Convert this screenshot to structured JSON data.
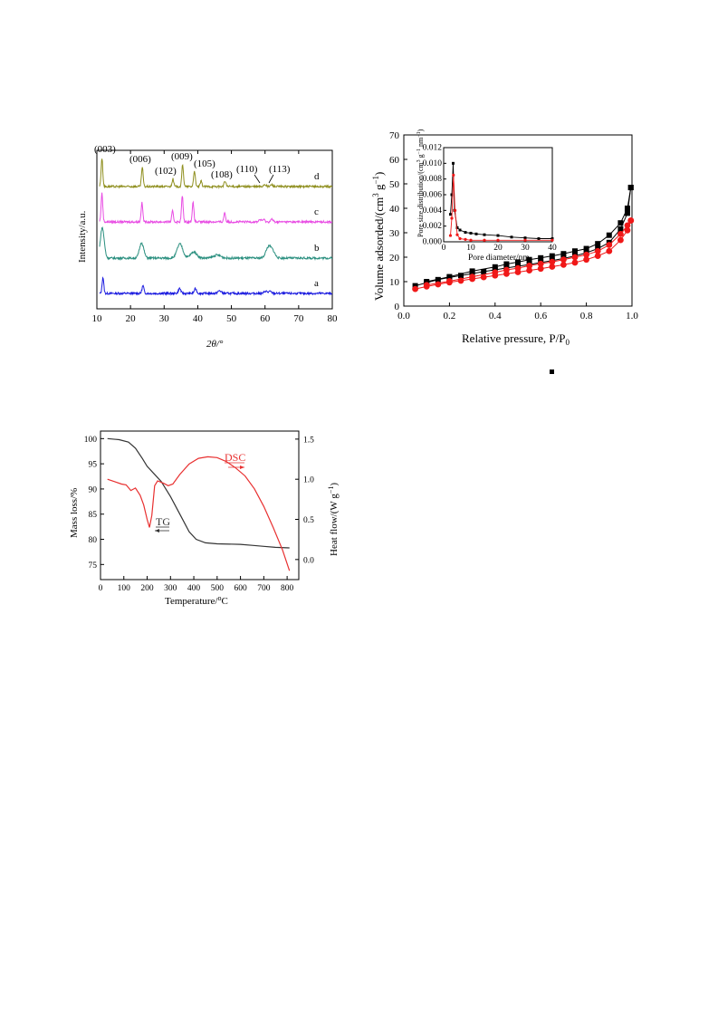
{
  "chart_data": [
    {
      "type": "line",
      "xlabel": "2θ/°",
      "ylabel": "Intensity/a.u.",
      "xlim": [
        10,
        80
      ],
      "xticks": [
        10,
        20,
        30,
        40,
        50,
        60,
        70,
        80
      ],
      "grid": false,
      "series": [
        {
          "name": "a",
          "color": "#1a1adf",
          "baseline": 0,
          "peaks": [
            [
              11.8,
              4.2,
              0.35
            ],
            [
              23.7,
              2.0,
              0.4
            ],
            [
              34.6,
              1.3,
              0.5
            ],
            [
              39.3,
              1.2,
              0.5
            ],
            [
              46.5,
              0.7,
              0.7
            ],
            [
              60.2,
              0.6,
              0.6
            ],
            [
              61.5,
              0.5,
              0.6
            ]
          ]
        },
        {
          "name": "b",
          "color": "#2a8f7f",
          "baseline": 0,
          "peaks": [
            [
              11.6,
              8.0,
              0.8
            ],
            [
              23.3,
              4.0,
              0.9
            ],
            [
              34.7,
              3.7,
              1.2
            ],
            [
              38.8,
              1.6,
              1.3
            ],
            [
              45.8,
              0.8,
              1.5
            ],
            [
              61.0,
              2.8,
              1.1
            ],
            [
              62.3,
              1.6,
              1.0
            ]
          ]
        },
        {
          "name": "c",
          "color": "#e84ce3",
          "baseline": 0,
          "peaks": [
            [
              11.5,
              7.5,
              0.35
            ],
            [
              23.4,
              5.0,
              0.35
            ],
            [
              32.5,
              2.8,
              0.35
            ],
            [
              35.4,
              6.8,
              0.35
            ],
            [
              38.6,
              5.0,
              0.35
            ],
            [
              48.0,
              2.5,
              0.35
            ],
            [
              58.5,
              0.6,
              0.5
            ],
            [
              59.6,
              0.6,
              0.5
            ],
            [
              62.0,
              0.7,
              0.5
            ]
          ]
        },
        {
          "name": "d",
          "color": "#8f8f1f",
          "baseline": 0,
          "peaks": [
            [
              11.5,
              7.5,
              0.35
            ],
            [
              23.5,
              5.0,
              0.35
            ],
            [
              32.6,
              2.0,
              0.35
            ],
            [
              35.5,
              5.8,
              0.35
            ],
            [
              39.0,
              4.2,
              0.35
            ],
            [
              41.0,
              1.4,
              0.35
            ],
            [
              48.1,
              1.4,
              0.4
            ],
            [
              59.9,
              0.6,
              0.5
            ],
            [
              62.0,
              0.5,
              0.5
            ]
          ]
        }
      ],
      "annotations": [
        "(003)",
        "(006)",
        "(102)",
        "(009)",
        "(105)",
        "(108)",
        "(110)",
        "(113)"
      ]
    },
    {
      "type": "scatter",
      "xlabel": "Relative pressure, P/P",
      "xlabel_sub": "0",
      "ylabel": "Volume adsorded/(cm",
      "ylabel_sup": "3",
      "ylabel_rest": " g",
      "ylabel_sup2": "−1",
      "ylabel_end": ")",
      "xlim": [
        0.0,
        1.0
      ],
      "ylim": [
        0,
        70
      ],
      "xticks": [
        0.0,
        0.2,
        0.4,
        0.6,
        0.8,
        1.0
      ],
      "yticks": [
        0,
        10,
        20,
        30,
        40,
        50,
        60,
        70
      ],
      "series": [
        {
          "marker": "square",
          "color": "#000000",
          "adsorption": [
            [
              0.05,
              8.3
            ],
            [
              0.1,
              9.6
            ],
            [
              0.15,
              10.8
            ],
            [
              0.2,
              11.7
            ],
            [
              0.25,
              12.5
            ],
            [
              0.3,
              13.3
            ],
            [
              0.35,
              14.1
            ],
            [
              0.4,
              14.8
            ],
            [
              0.45,
              15.6
            ],
            [
              0.5,
              16.3
            ],
            [
              0.55,
              17.0
            ],
            [
              0.6,
              17.8
            ],
            [
              0.65,
              18.6
            ],
            [
              0.7,
              19.5
            ],
            [
              0.75,
              20.5
            ],
            [
              0.8,
              21.8
            ],
            [
              0.85,
              23.5
            ],
            [
              0.9,
              26.0
            ],
            [
              0.95,
              31.5
            ],
            [
              0.98,
              38.0
            ],
            [
              0.995,
              48.5
            ]
          ],
          "desorption": [
            [
              0.995,
              48.5
            ],
            [
              0.98,
              40.0
            ],
            [
              0.95,
              34.0
            ],
            [
              0.9,
              29.0
            ],
            [
              0.85,
              25.5
            ],
            [
              0.8,
              23.5
            ],
            [
              0.75,
              22.5
            ],
            [
              0.7,
              21.4
            ],
            [
              0.65,
              20.5
            ],
            [
              0.6,
              19.7
            ],
            [
              0.55,
              19.0
            ],
            [
              0.5,
              18.0
            ],
            [
              0.45,
              17.2
            ],
            [
              0.4,
              16.0
            ],
            [
              0.3,
              14.3
            ],
            [
              0.2,
              12.0
            ],
            [
              0.1,
              10.0
            ]
          ]
        },
        {
          "marker": "circle",
          "color": "#f01818",
          "adsorption": [
            [
              0.05,
              7.0
            ],
            [
              0.1,
              8.0
            ],
            [
              0.15,
              8.9
            ],
            [
              0.2,
              9.7
            ],
            [
              0.25,
              10.4
            ],
            [
              0.3,
              11.1
            ],
            [
              0.35,
              11.8
            ],
            [
              0.4,
              12.5
            ],
            [
              0.45,
              13.2
            ],
            [
              0.5,
              13.9
            ],
            [
              0.55,
              14.6
            ],
            [
              0.6,
              15.3
            ],
            [
              0.65,
              16.1
            ],
            [
              0.7,
              16.9
            ],
            [
              0.75,
              17.8
            ],
            [
              0.8,
              19.0
            ],
            [
              0.85,
              20.5
            ],
            [
              0.9,
              22.5
            ],
            [
              0.95,
              27.0
            ],
            [
              0.98,
              31.0
            ],
            [
              0.995,
              35.0
            ]
          ],
          "desorption": [
            [
              0.995,
              35.0
            ],
            [
              0.98,
              33.0
            ],
            [
              0.95,
              29.5
            ],
            [
              0.9,
              25.0
            ],
            [
              0.85,
              22.5
            ],
            [
              0.8,
              21.0
            ],
            [
              0.75,
              20.0
            ],
            [
              0.7,
              19.0
            ],
            [
              0.65,
              18.1
            ],
            [
              0.6,
              17.3
            ],
            [
              0.55,
              16.5
            ],
            [
              0.5,
              15.5
            ],
            [
              0.45,
              14.8
            ],
            [
              0.4,
              13.8
            ],
            [
              0.3,
              12.0
            ],
            [
              0.2,
              10.2
            ],
            [
              0.1,
              8.6
            ]
          ]
        }
      ],
      "inset": {
        "xlabel": "Pore diameter/nm",
        "ylabel": "Pore size distribution/(cm",
        "ylabel_sup": "3",
        "ylabel_rest": " g",
        "ylabel_sup2": "−1",
        "ylabel_rest2": " nm",
        "ylabel_sup3": "−1",
        "ylabel_end": ")",
        "xlim": [
          0,
          40
        ],
        "ylim": [
          0,
          0.012
        ],
        "xticks": [
          0,
          10,
          20,
          30,
          40
        ],
        "yticks": [
          0.0,
          0.002,
          0.004,
          0.006,
          0.008,
          0.01,
          0.012
        ],
        "series": [
          {
            "color": "#000000",
            "marker": "square",
            "points": [
              [
                2.5,
                0.0035
              ],
              [
                3.0,
                0.006
              ],
              [
                3.5,
                0.01
              ],
              [
                4.0,
                0.004
              ],
              [
                5.0,
                0.0018
              ],
              [
                6.0,
                0.0015
              ],
              [
                8.0,
                0.0012
              ],
              [
                10.0,
                0.0011
              ],
              [
                12.0,
                0.001
              ],
              [
                15.0,
                0.0009
              ],
              [
                20.0,
                0.0008
              ],
              [
                25.0,
                0.0006
              ],
              [
                30.0,
                0.0005
              ],
              [
                35.0,
                0.0004
              ],
              [
                40.0,
                0.0004
              ]
            ]
          },
          {
            "color": "#f01818",
            "marker": "circle",
            "points": [
              [
                2.5,
                0.0008
              ],
              [
                3.0,
                0.003
              ],
              [
                3.6,
                0.0085
              ],
              [
                4.2,
                0.004
              ],
              [
                5.0,
                0.0009
              ],
              [
                6.0,
                0.0004
              ],
              [
                8.0,
                0.0003
              ],
              [
                10.0,
                0.0002
              ],
              [
                15.0,
                0.0002
              ],
              [
                20.0,
                0.0002
              ],
              [
                30.0,
                0.0002
              ],
              [
                40.0,
                0.0002
              ]
            ]
          }
        ]
      }
    },
    {
      "type": "line",
      "xlabel": "Temperature/",
      "xlabel_sup": "o",
      "xlabel_end": "C",
      "ylabel": "Mass loss/%",
      "y2label": "Heat flow/(W g",
      "y2label_sup": "−1",
      "y2label_end": ")",
      "xlim": [
        0,
        850
      ],
      "ylim": [
        72,
        101.5
      ],
      "y2lim": [
        -0.25,
        1.6
      ],
      "xticks": [
        0,
        100,
        200,
        300,
        400,
        500,
        600,
        700,
        800
      ],
      "yticks": [
        75,
        80,
        85,
        90,
        95,
        100
      ],
      "y2ticks": [
        0.0,
        0.5,
        1.0,
        1.5
      ],
      "series": [
        {
          "name": "TG",
          "axis": "left",
          "color": "#333333",
          "points": [
            [
              30,
              100
            ],
            [
              80,
              99.8
            ],
            [
              120,
              99.3
            ],
            [
              150,
              98.1
            ],
            [
              180,
              96
            ],
            [
              200,
              94.5
            ],
            [
              230,
              93
            ],
            [
              260,
              91.5
            ],
            [
              300,
              88.5
            ],
            [
              340,
              85
            ],
            [
              380,
              81.5
            ],
            [
              410,
              80
            ],
            [
              450,
              79.3
            ],
            [
              500,
              79.1
            ],
            [
              600,
              79
            ],
            [
              650,
              78.8
            ],
            [
              700,
              78.6
            ],
            [
              750,
              78.4
            ],
            [
              810,
              78.3
            ]
          ]
        },
        {
          "name": "DSC",
          "axis": "right",
          "color": "#e83030",
          "points": [
            [
              30,
              1.0
            ],
            [
              60,
              0.97
            ],
            [
              90,
              0.94
            ],
            [
              110,
              0.93
            ],
            [
              130,
              0.86
            ],
            [
              150,
              0.89
            ],
            [
              170,
              0.8
            ],
            [
              185,
              0.68
            ],
            [
              200,
              0.5
            ],
            [
              210,
              0.4
            ],
            [
              220,
              0.55
            ],
            [
              232,
              0.92
            ],
            [
              245,
              0.98
            ],
            [
              270,
              0.95
            ],
            [
              290,
              0.92
            ],
            [
              310,
              0.94
            ],
            [
              340,
              1.06
            ],
            [
              380,
              1.19
            ],
            [
              420,
              1.26
            ],
            [
              460,
              1.28
            ],
            [
              500,
              1.27
            ],
            [
              540,
              1.22
            ],
            [
              580,
              1.14
            ],
            [
              620,
              1.04
            ],
            [
              660,
              0.88
            ],
            [
              700,
              0.66
            ],
            [
              740,
              0.4
            ],
            [
              780,
              0.12
            ],
            [
              810,
              -0.14
            ]
          ]
        }
      ],
      "annotations": [
        "DSC",
        "TG"
      ]
    }
  ]
}
